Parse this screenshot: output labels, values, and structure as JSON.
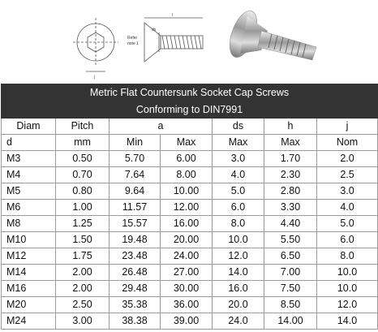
{
  "diagram": {
    "labels": [
      "l",
      "ds",
      "Refer",
      "note 1",
      "j"
    ]
  },
  "table": {
    "title": "Metric Flat Countersunk Socket Cap Screws",
    "subtitle": "Conforming to DIN7991",
    "header1": [
      "Diam",
      "Pitch",
      "a",
      "ds",
      "h",
      "j"
    ],
    "header2": [
      "d",
      "mm",
      "Min",
      "Max",
      "Max",
      "Max",
      "Nom"
    ],
    "rows": [
      [
        "M3",
        "0.50",
        "5.70",
        "6.00",
        "3.0",
        "1.70",
        "2.0"
      ],
      [
        "M4",
        "0.70",
        "7.64",
        "8.00",
        "4.0",
        "2.30",
        "2.5"
      ],
      [
        "M5",
        "0.80",
        "9.64",
        "10.00",
        "5.0",
        "2.80",
        "3.0"
      ],
      [
        "M6",
        "1.00",
        "11.57",
        "12.00",
        "6.0",
        "3.30",
        "4.0"
      ],
      [
        "M8",
        "1.25",
        "15.57",
        "16.00",
        "8.0",
        "4.40",
        "5.0"
      ],
      [
        "M10",
        "1.50",
        "19.48",
        "20.00",
        "10.0",
        "5.50",
        "6.0"
      ],
      [
        "M12",
        "1.75",
        "23.48",
        "24.00",
        "12.0",
        "6.50",
        "8.0"
      ],
      [
        "M14",
        "2.00",
        "26.48",
        "27.00",
        "14.0",
        "7.00",
        "10.0"
      ],
      [
        "M16",
        "2.00",
        "29.48",
        "30.00",
        "16.0",
        "7.50",
        "10.0"
      ],
      [
        "M20",
        "2.50",
        "35.38",
        "36.00",
        "20.0",
        "8.50",
        "12.0"
      ],
      [
        "M24",
        "3.00",
        "38.38",
        "39.00",
        "24.0",
        "14.00",
        "14.0"
      ]
    ]
  }
}
